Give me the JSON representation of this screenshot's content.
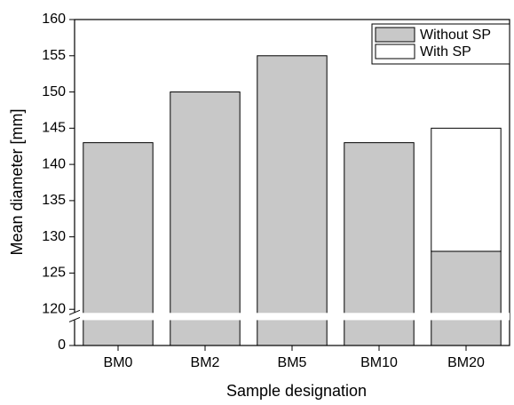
{
  "chart_data": {
    "type": "bar",
    "stacked": true,
    "x_label": "Sample designation",
    "y_label": "Mean diameter [mm]",
    "categories": [
      "BM0",
      "BM2",
      "BM5",
      "BM10",
      "BM20"
    ],
    "series": [
      {
        "name": "Without SP",
        "color": "#c8c8c8",
        "values": [
          143,
          150,
          155,
          143,
          128
        ]
      },
      {
        "name": "With SP",
        "color": "#ffffff",
        "values": [
          null,
          null,
          null,
          null,
          17
        ]
      }
    ],
    "ylim": [
      0,
      160
    ],
    "ybreak": [
      3.5,
      119.5
    ],
    "yticks": [
      0,
      120,
      125,
      130,
      135,
      140,
      145,
      150,
      155,
      160
    ],
    "legend": "upper right"
  }
}
